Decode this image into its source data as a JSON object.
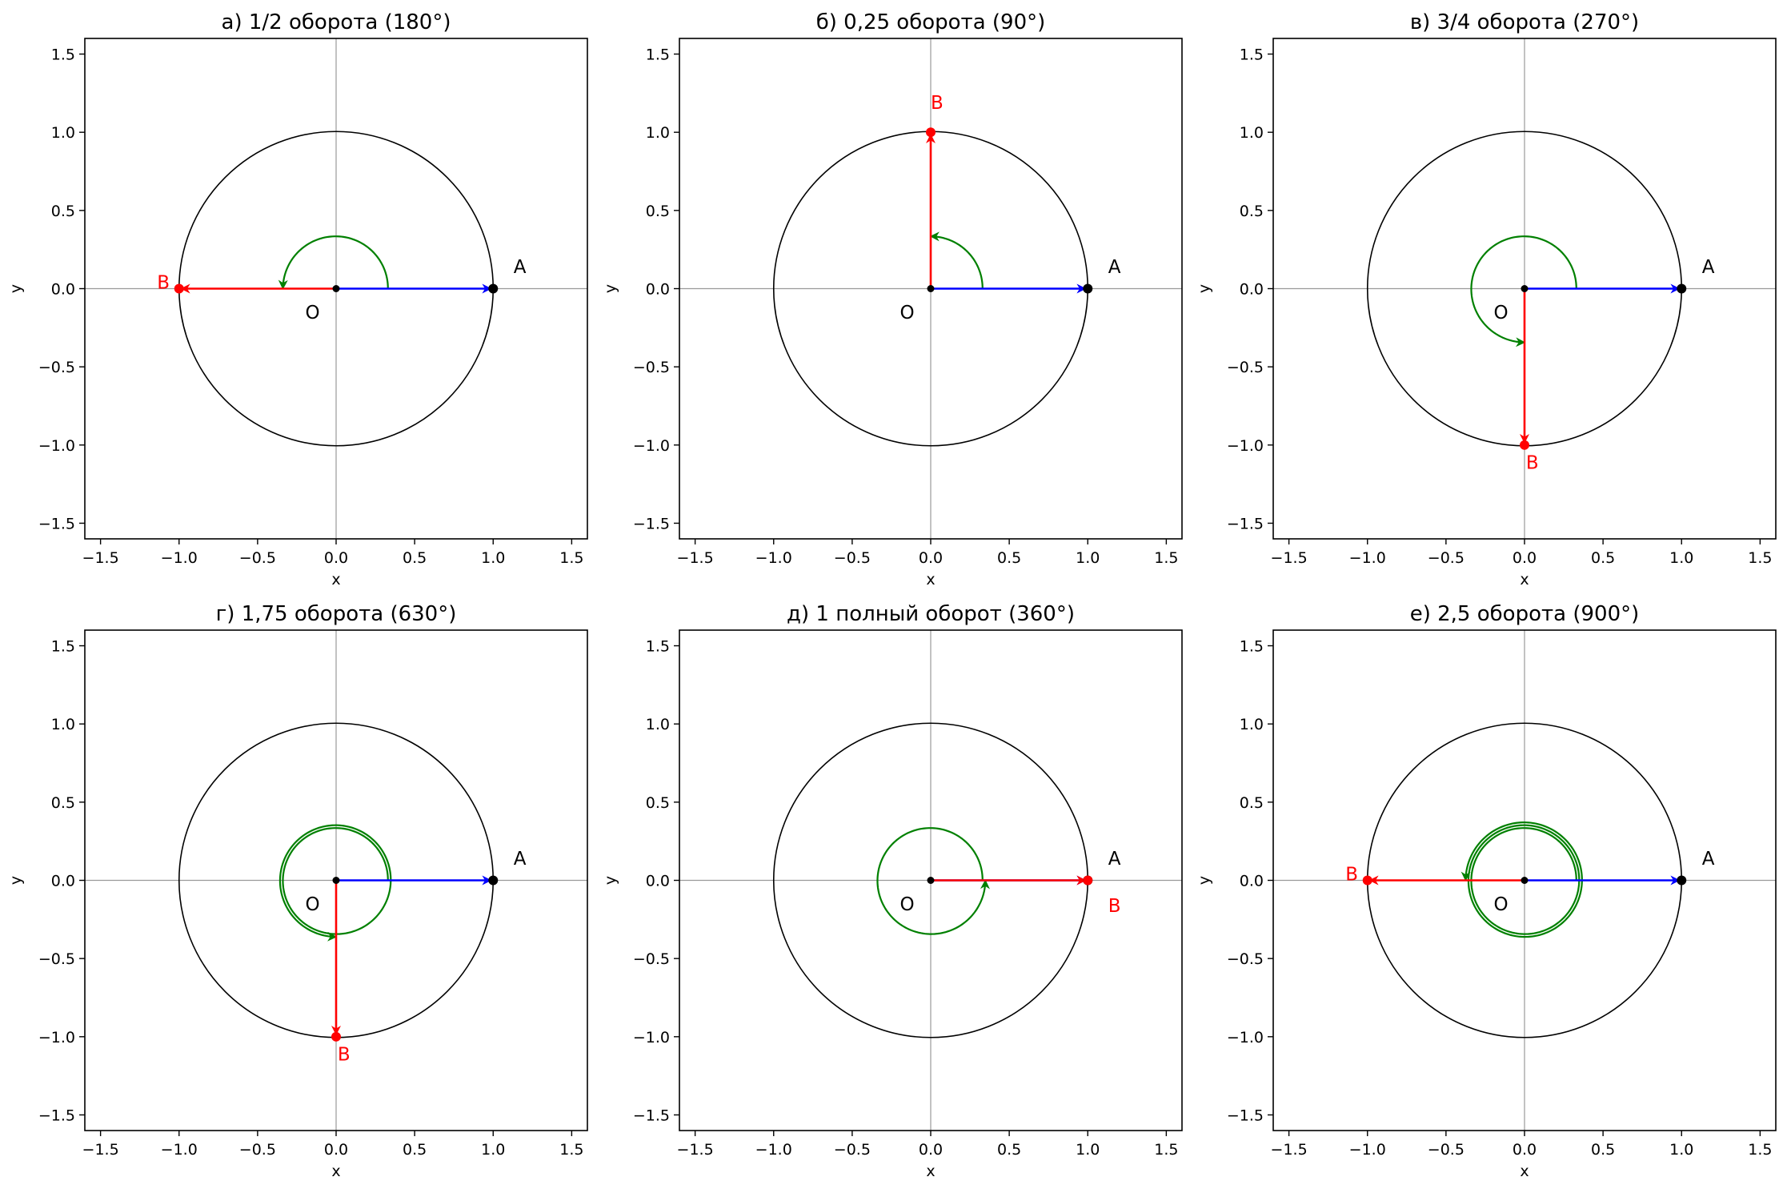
{
  "chart_data": [
    {
      "type": "unit-circle-rotation",
      "title": "а) 1/2 оборота (180°)",
      "turns": 0.5,
      "angle_deg": 180,
      "xlabel": "x",
      "ylabel": "y",
      "xlim": [
        -1.6,
        1.6
      ],
      "ylim": [
        -1.6,
        1.6
      ],
      "ticks": [
        -1.5,
        -1.0,
        -0.5,
        0.0,
        0.5,
        1.0,
        1.5
      ],
      "tick_labels": [
        "−1.5",
        "−1.0",
        "−0.5",
        "0.0",
        "0.5",
        "1.0",
        "1.5"
      ],
      "circle_radius": 1.0,
      "arc_radius": 0.33,
      "points": {
        "O": {
          "label": "O",
          "x": 0.0,
          "y": 0.0
        },
        "A": {
          "label": "A",
          "x": 1.0,
          "y": 0.0
        },
        "B": {
          "label": "B",
          "x": -1.0,
          "y": 0.0
        }
      }
    },
    {
      "type": "unit-circle-rotation",
      "title": "б) 0,25 оборота (90°)",
      "turns": 0.25,
      "angle_deg": 90,
      "xlabel": "x",
      "ylabel": "y",
      "xlim": [
        -1.6,
        1.6
      ],
      "ylim": [
        -1.6,
        1.6
      ],
      "ticks": [
        -1.5,
        -1.0,
        -0.5,
        0.0,
        0.5,
        1.0,
        1.5
      ],
      "tick_labels": [
        "−1.5",
        "−1.0",
        "−0.5",
        "0.0",
        "0.5",
        "1.0",
        "1.5"
      ],
      "circle_radius": 1.0,
      "arc_radius": 0.33,
      "points": {
        "O": {
          "label": "O",
          "x": 0.0,
          "y": 0.0
        },
        "A": {
          "label": "A",
          "x": 1.0,
          "y": 0.0
        },
        "B": {
          "label": "B",
          "x": 0.0,
          "y": 1.0
        }
      }
    },
    {
      "type": "unit-circle-rotation",
      "title": "в) 3/4 оборота (270°)",
      "turns": 0.75,
      "angle_deg": 270,
      "xlabel": "x",
      "ylabel": "y",
      "xlim": [
        -1.6,
        1.6
      ],
      "ylim": [
        -1.6,
        1.6
      ],
      "ticks": [
        -1.5,
        -1.0,
        -0.5,
        0.0,
        0.5,
        1.0,
        1.5
      ],
      "tick_labels": [
        "−1.5",
        "−1.0",
        "−0.5",
        "0.0",
        "0.5",
        "1.0",
        "1.5"
      ],
      "circle_radius": 1.0,
      "arc_radius": 0.33,
      "points": {
        "O": {
          "label": "O",
          "x": 0.0,
          "y": 0.0
        },
        "A": {
          "label": "A",
          "x": 1.0,
          "y": 0.0
        },
        "B": {
          "label": "B",
          "x": 0.0,
          "y": -1.0
        }
      }
    },
    {
      "type": "unit-circle-rotation",
      "title": "г) 1,75 оборота (630°)",
      "turns": 1.75,
      "angle_deg": 630,
      "xlabel": "x",
      "ylabel": "y",
      "xlim": [
        -1.6,
        1.6
      ],
      "ylim": [
        -1.6,
        1.6
      ],
      "ticks": [
        -1.5,
        -1.0,
        -0.5,
        0.0,
        0.5,
        1.0,
        1.5
      ],
      "tick_labels": [
        "−1.5",
        "−1.0",
        "−0.5",
        "0.0",
        "0.5",
        "1.0",
        "1.5"
      ],
      "circle_radius": 1.0,
      "arc_radius": 0.33,
      "points": {
        "O": {
          "label": "O",
          "x": 0.0,
          "y": 0.0
        },
        "A": {
          "label": "A",
          "x": 1.0,
          "y": 0.0
        },
        "B": {
          "label": "B",
          "x": 0.0,
          "y": -1.0
        }
      }
    },
    {
      "type": "unit-circle-rotation",
      "title": "д) 1 полный оборот (360°)",
      "turns": 1.0,
      "angle_deg": 360,
      "xlabel": "x",
      "ylabel": "y",
      "xlim": [
        -1.6,
        1.6
      ],
      "ylim": [
        -1.6,
        1.6
      ],
      "ticks": [
        -1.5,
        -1.0,
        -0.5,
        0.0,
        0.5,
        1.0,
        1.5
      ],
      "tick_labels": [
        "−1.5",
        "−1.0",
        "−0.5",
        "0.0",
        "0.5",
        "1.0",
        "1.5"
      ],
      "circle_radius": 1.0,
      "arc_radius": 0.33,
      "points": {
        "O": {
          "label": "O",
          "x": 0.0,
          "y": 0.0
        },
        "A": {
          "label": "A",
          "x": 1.0,
          "y": 0.0
        },
        "B": {
          "label": "B",
          "x": 1.0,
          "y": 0.0
        }
      }
    },
    {
      "type": "unit-circle-rotation",
      "title": "е) 2,5 оборота (900°)",
      "turns": 2.5,
      "angle_deg": 900,
      "xlabel": "x",
      "ylabel": "y",
      "xlim": [
        -1.6,
        1.6
      ],
      "ylim": [
        -1.6,
        1.6
      ],
      "ticks": [
        -1.5,
        -1.0,
        -0.5,
        0.0,
        0.5,
        1.0,
        1.5
      ],
      "tick_labels": [
        "−1.5",
        "−1.0",
        "−0.5",
        "0.0",
        "0.5",
        "1.0",
        "1.5"
      ],
      "circle_radius": 1.0,
      "arc_radius": 0.33,
      "points": {
        "O": {
          "label": "O",
          "x": 0.0,
          "y": 0.0
        },
        "A": {
          "label": "A",
          "x": 1.0,
          "y": 0.0
        },
        "B": {
          "label": "B",
          "x": -1.0,
          "y": 0.0
        }
      }
    }
  ],
  "colors": {
    "vector_OA": "#0000ff",
    "vector_OB": "#ff0000",
    "rotation_arc": "#008000",
    "unit_circle": "#000000",
    "axes_lines": "#999999",
    "point_O": "#000000",
    "point_A": "#000000",
    "point_B": "#ff0000",
    "label_B": "#ff0000"
  }
}
